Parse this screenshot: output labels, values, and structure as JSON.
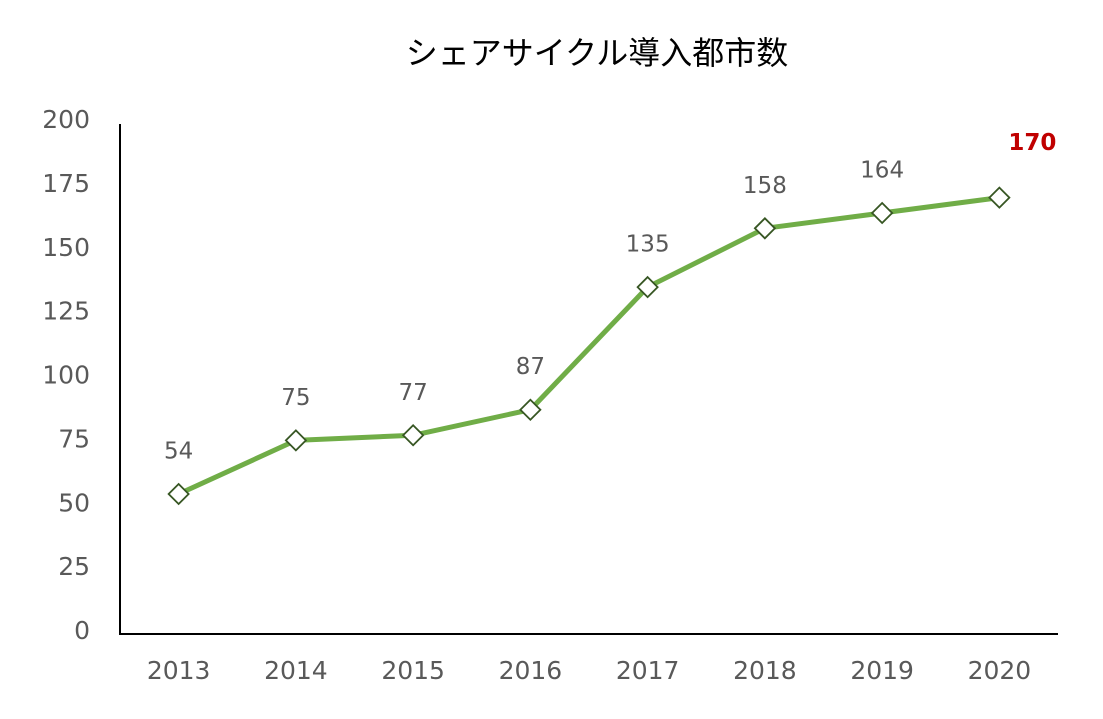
{
  "chart_data": {
    "type": "line",
    "title": "シェアサイクル導入都市数",
    "categories": [
      "2013",
      "2014",
      "2015",
      "2016",
      "2017",
      "2018",
      "2019",
      "2020"
    ],
    "series": [
      {
        "name": "シェアサイクル導入都市数",
        "color": "#70ad47",
        "values": [
          54,
          75,
          77,
          87,
          135,
          158,
          164,
          170
        ],
        "value_label_colors": [
          "#595959",
          "#595959",
          "#595959",
          "#595959",
          "#595959",
          "#595959",
          "#595959",
          "#c00000"
        ]
      }
    ],
    "ylim": [
      0,
      200
    ],
    "yticks": [
      0,
      25,
      50,
      75,
      100,
      125,
      150,
      175,
      200
    ],
    "grid": false,
    "legend": false
  }
}
